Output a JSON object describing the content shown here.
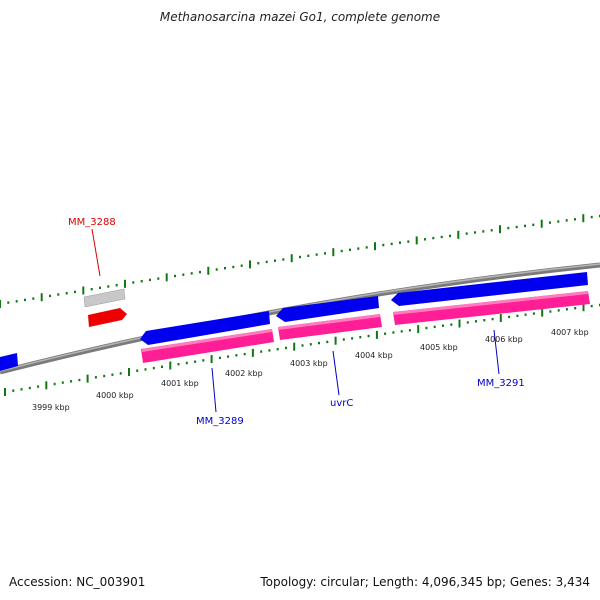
{
  "title": "Methanosarcina mazei Go1, complete genome",
  "footer": {
    "accession": "Accession: NC_003901",
    "summary": "Topology: circular; Length: 4,096,345 bp; Genes: 3,434"
  },
  "colors": {
    "backbone": "#8a8a8a",
    "cds": "#0000ee",
    "gene": "#ff1e96",
    "trna_gene": "#c8c8c8",
    "trna": "#ee0000",
    "ticks": "#117711",
    "gene_label_blue": "#0000cc",
    "gene_label_red": "#dd0000",
    "tick_label": "#222222"
  },
  "ruler": {
    "labels": [
      "3999 kbp",
      "4000 kbp",
      "4001 kbp",
      "4002 kbp",
      "4003 kbp",
      "4004 kbp",
      "4005 kbp",
      "4006 kbp",
      "4007 kbp"
    ]
  },
  "features": [
    {
      "kind": "CDS",
      "strand": "reverse",
      "label": ""
    },
    {
      "kind": "CDS",
      "strand": "reverse",
      "label": "MM_3289"
    },
    {
      "kind": "gene",
      "strand": "reverse",
      "label": ""
    },
    {
      "kind": "CDS",
      "strand": "reverse",
      "label": "uvrC"
    },
    {
      "kind": "gene",
      "strand": "reverse",
      "label": ""
    },
    {
      "kind": "CDS",
      "strand": "reverse",
      "label": "MM_3291"
    },
    {
      "kind": "gene",
      "strand": "reverse",
      "label": ""
    },
    {
      "kind": "gene",
      "strand": "forward",
      "label": "MM_3288"
    },
    {
      "kind": "tRNA",
      "strand": "forward",
      "label": ""
    }
  ]
}
